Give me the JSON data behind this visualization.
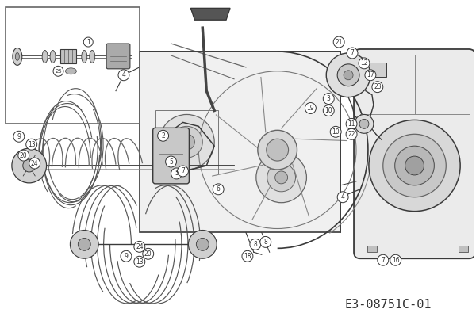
{
  "background_color": "#ffffff",
  "diagram_code": "E3-08751C-01",
  "figsize": [
    6.0,
    4.24
  ],
  "dpi": 100,
  "image_pixels_base64": ""
}
